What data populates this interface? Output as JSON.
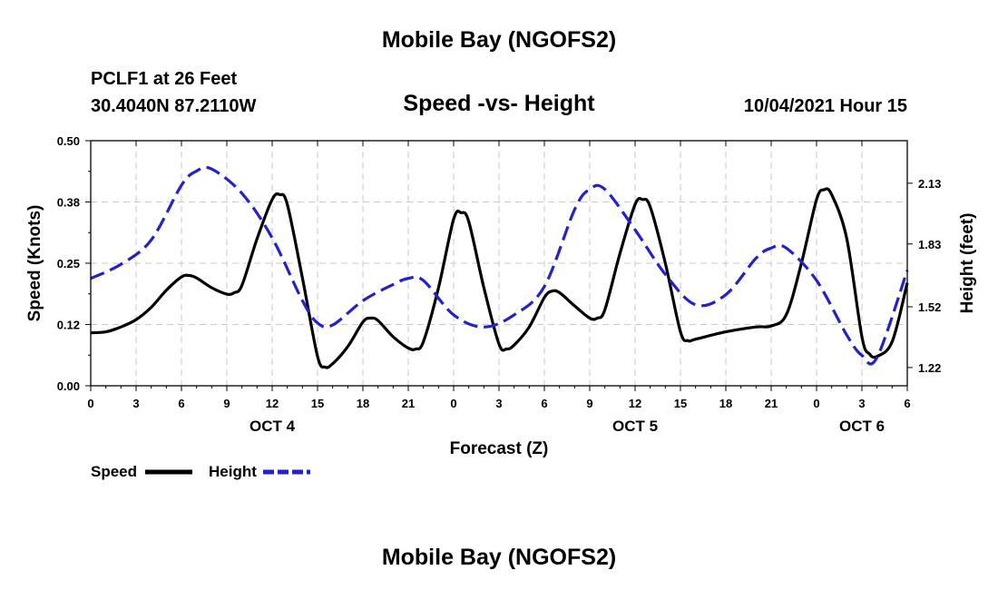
{
  "header": {
    "title": "Mobile Bay (NGOFS2)",
    "station": "PCLF1 at 26 Feet",
    "coords": "30.4040N  87.2110W",
    "subtitle": "Speed -vs- Height",
    "datetime": "10/04/2021 Hour 15"
  },
  "footer": {
    "title": "Mobile Bay (NGOFS2)"
  },
  "chart_data": {
    "type": "line",
    "xlabel": "Forecast (Z)",
    "ylabel_left": "Speed (Knots)",
    "ylabel_right": "Height (feet)",
    "xlim": [
      0,
      54
    ],
    "ylim_left": [
      0,
      0.5
    ],
    "ylim_right": [
      1.13,
      2.34
    ],
    "x_ticks": [
      0,
      3,
      6,
      9,
      12,
      15,
      18,
      21,
      24,
      27,
      30,
      33,
      36,
      39,
      42,
      45,
      48,
      51,
      54
    ],
    "x_tick_labels": [
      "0",
      "3",
      "6",
      "9",
      "12",
      "15",
      "18",
      "21",
      "0",
      "3",
      "6",
      "9",
      "12",
      "15",
      "18",
      "21",
      "0",
      "3",
      "6"
    ],
    "y_left_ticks": [
      0,
      0.125,
      0.25,
      0.375,
      0.5
    ],
    "y_left_tick_labels": [
      "0.00",
      "0.12",
      "0.25",
      "0.38",
      "0.50"
    ],
    "y_right_ticks": [
      1.22,
      1.52,
      1.83,
      2.13
    ],
    "y_right_tick_labels": [
      "1.22",
      "1.52",
      "1.83",
      "2.13"
    ],
    "day_labels": [
      {
        "x": 12,
        "label": "OCT 4"
      },
      {
        "x": 36,
        "label": "OCT 5"
      },
      {
        "x": 51,
        "label": "OCT 6"
      }
    ],
    "grid": true,
    "legend_position": "bottom-left",
    "series": [
      {
        "name": "Speed",
        "axis": "left",
        "color": "#000000",
        "dash": "solid",
        "x": [
          0,
          1,
          2,
          3,
          4,
          5,
          6,
          6.5,
          7,
          8,
          9,
          9.5,
          10,
          11,
          12,
          12.5,
          13,
          14,
          15,
          15.5,
          16,
          17,
          18,
          18.5,
          19,
          20,
          21,
          21.5,
          22,
          23,
          24,
          24.5,
          25,
          26,
          27,
          27.5,
          28,
          29,
          30,
          30.5,
          31,
          32,
          33,
          33.5,
          34,
          35,
          36,
          36.5,
          37,
          38,
          39,
          39.5,
          40,
          42,
          44,
          45,
          46,
          47,
          48,
          48.5,
          49,
          50,
          51,
          51.5,
          52,
          53,
          54
        ],
        "values": [
          0.108,
          0.11,
          0.12,
          0.135,
          0.16,
          0.195,
          0.222,
          0.225,
          0.22,
          0.2,
          0.187,
          0.19,
          0.205,
          0.3,
          0.38,
          0.39,
          0.37,
          0.22,
          0.06,
          0.038,
          0.045,
          0.08,
          0.13,
          0.138,
          0.133,
          0.1,
          0.077,
          0.075,
          0.09,
          0.2,
          0.34,
          0.353,
          0.335,
          0.2,
          0.085,
          0.075,
          0.083,
          0.12,
          0.18,
          0.193,
          0.19,
          0.163,
          0.138,
          0.138,
          0.155,
          0.27,
          0.37,
          0.38,
          0.365,
          0.25,
          0.11,
          0.092,
          0.095,
          0.11,
          0.12,
          0.122,
          0.145,
          0.25,
          0.38,
          0.4,
          0.39,
          0.3,
          0.1,
          0.065,
          0.06,
          0.09,
          0.21
        ]
      },
      {
        "name": "Height",
        "axis": "right",
        "color": "#2222cc",
        "dash": "dashed",
        "x": [
          0,
          2,
          4,
          6,
          7,
          8,
          10,
          12,
          14,
          15,
          16,
          18,
          20,
          21,
          22,
          24,
          26,
          28,
          30,
          32,
          33,
          34,
          36,
          38,
          40,
          42,
          44,
          45,
          46,
          48,
          50,
          51,
          52,
          54
        ],
        "values": [
          1.66,
          1.73,
          1.85,
          2.12,
          2.19,
          2.2,
          2.08,
          1.86,
          1.55,
          1.44,
          1.43,
          1.55,
          1.63,
          1.66,
          1.65,
          1.48,
          1.42,
          1.48,
          1.62,
          2.0,
          2.1,
          2.1,
          1.9,
          1.68,
          1.53,
          1.58,
          1.76,
          1.81,
          1.81,
          1.65,
          1.38,
          1.28,
          1.27,
          1.7
        ]
      }
    ]
  }
}
